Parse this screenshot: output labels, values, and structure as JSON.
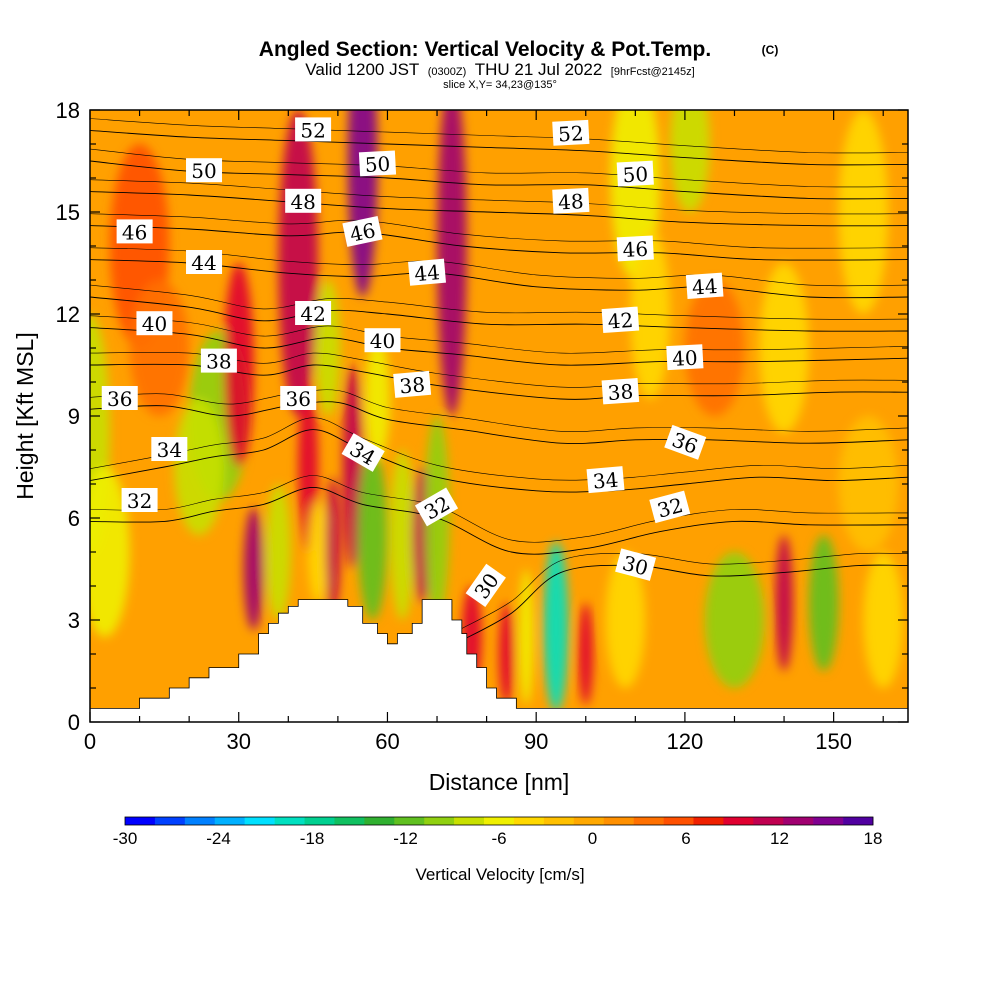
{
  "header": {
    "title": "Angled Section: Vertical Velocity & Pot.Temp.",
    "title_unit": "(C)",
    "valid_prefix": "Valid 1200 JST",
    "valid_z": "(0300Z)",
    "valid_date": "THU 21 Jul 2022",
    "valid_fcst": "[9hrFcst@2145z]",
    "slice": "slice X,Y= 34,23@135°"
  },
  "chart_data": {
    "type": "heatmap",
    "xlabel": "Distance [nm]",
    "ylabel": "Height [Kft MSL]",
    "xlim": [
      0,
      165
    ],
    "ylim": [
      0,
      18
    ],
    "x_ticks": [
      "0",
      "30",
      "60",
      "90",
      "120",
      "150"
    ],
    "y_ticks": [
      "0",
      "3",
      "6",
      "9",
      "12",
      "15",
      "18"
    ],
    "terrain": {
      "distance": [
        0,
        10,
        16,
        20,
        24,
        30,
        34,
        36,
        38,
        40,
        42,
        44,
        46,
        48,
        50,
        52,
        55,
        58,
        60,
        62,
        65,
        67,
        68,
        70,
        73,
        75,
        76,
        78,
        80,
        82,
        86,
        88,
        90,
        165
      ],
      "height": [
        0.4,
        0.7,
        1.0,
        1.3,
        1.6,
        2.0,
        2.6,
        2.9,
        3.2,
        3.4,
        3.6,
        3.6,
        3.6,
        3.6,
        3.6,
        3.4,
        2.9,
        2.6,
        2.3,
        2.6,
        2.9,
        3.6,
        3.6,
        3.6,
        3.0,
        2.6,
        2.0,
        1.6,
        1.0,
        0.7,
        0.4,
        0.4,
        0.4,
        0.4
      ]
    },
    "colorbar": {
      "label": "Vertical Velocity [cm/s]",
      "ticks": [
        "-30",
        "-24",
        "-18",
        "-12",
        "-6",
        "0",
        "6",
        "12",
        "18"
      ],
      "range": [
        -30,
        18
      ],
      "colors": [
        "#0000ff",
        "#0040ff",
        "#0080ff",
        "#00b0ff",
        "#00e0ff",
        "#00e0c0",
        "#00d090",
        "#10c060",
        "#30b030",
        "#60c020",
        "#90d010",
        "#c8e000",
        "#f0f000",
        "#ffd800",
        "#ffc000",
        "#ffa800",
        "#ff9000",
        "#ff7000",
        "#ff5000",
        "#f02000",
        "#e00030",
        "#c00050",
        "#a00070",
        "#800090",
        "#5000a0"
      ]
    },
    "cells": [
      {
        "x": 0,
        "y": 8.5,
        "rx": 4,
        "ry": 3.5,
        "w": -7
      },
      {
        "x": 3,
        "y": 5.0,
        "rx": 5,
        "ry": 2.5,
        "w": -6
      },
      {
        "x": 10,
        "y": 14,
        "rx": 6,
        "ry": 3.0,
        "w": 6
      },
      {
        "x": 14,
        "y": 11,
        "rx": 6,
        "ry": 2.0,
        "w": 4
      },
      {
        "x": 26,
        "y": 9.0,
        "rx": 6,
        "ry": 2.5,
        "w": -10
      },
      {
        "x": 22,
        "y": 7.5,
        "rx": 5,
        "ry": 2.0,
        "w": -8
      },
      {
        "x": 30,
        "y": 10.5,
        "rx": 3,
        "ry": 3.0,
        "w": 10
      },
      {
        "x": 33,
        "y": 4.5,
        "rx": 2,
        "ry": 1.8,
        "w": 13
      },
      {
        "x": 38,
        "y": 5.0,
        "rx": 2.5,
        "ry": 2.0,
        "w": -7
      },
      {
        "x": 42,
        "y": 13.5,
        "rx": 4,
        "ry": 4.5,
        "w": 12
      },
      {
        "x": 44,
        "y": 7.5,
        "rx": 2,
        "ry": 2.5,
        "w": 9
      },
      {
        "x": 46,
        "y": 5.0,
        "rx": 2,
        "ry": 1.5,
        "w": -5
      },
      {
        "x": 49,
        "y": 5.2,
        "rx": 1.5,
        "ry": 2.0,
        "w": 11
      },
      {
        "x": 48,
        "y": 11.0,
        "rx": 2.5,
        "ry": 2.0,
        "w": -8
      },
      {
        "x": 55,
        "y": 16.5,
        "rx": 3,
        "ry": 4.0,
        "w": 16
      },
      {
        "x": 53,
        "y": 7.5,
        "rx": 2,
        "ry": 3.0,
        "w": 11
      },
      {
        "x": 57,
        "y": 5.5,
        "rx": 3,
        "ry": 2.5,
        "w": -12
      },
      {
        "x": 58,
        "y": 9.5,
        "rx": 2.5,
        "ry": 1.8,
        "w": -6
      },
      {
        "x": 63,
        "y": 5.5,
        "rx": 2.5,
        "ry": 2.5,
        "w": -8
      },
      {
        "x": 67,
        "y": 5.5,
        "rx": 2,
        "ry": 2.0,
        "w": 12
      },
      {
        "x": 70,
        "y": 6.0,
        "rx": 2.5,
        "ry": 3.0,
        "w": -9
      },
      {
        "x": 73,
        "y": 14.0,
        "rx": 3,
        "ry": 5.0,
        "w": 13
      },
      {
        "x": 77,
        "y": 2.5,
        "rx": 2,
        "ry": 1.5,
        "w": 9
      },
      {
        "x": 84,
        "y": 2.0,
        "rx": 1.5,
        "ry": 1.5,
        "w": 10
      },
      {
        "x": 88,
        "y": 2.5,
        "rx": 1.5,
        "ry": 2.0,
        "w": -6
      },
      {
        "x": 94,
        "y": 2.8,
        "rx": 2.5,
        "ry": 2.5,
        "w": -19
      },
      {
        "x": 100,
        "y": 2.0,
        "rx": 1.5,
        "ry": 1.5,
        "w": 10
      },
      {
        "x": 108,
        "y": 3.0,
        "rx": 4,
        "ry": 2.0,
        "w": -5
      },
      {
        "x": 110,
        "y": 16.0,
        "rx": 5,
        "ry": 3.0,
        "w": -6
      },
      {
        "x": 113,
        "y": 12.0,
        "rx": 4,
        "ry": 2.5,
        "w": -4
      },
      {
        "x": 121,
        "y": 17.0,
        "rx": 4,
        "ry": 2.0,
        "w": -7
      },
      {
        "x": 130,
        "y": 3.0,
        "rx": 6,
        "ry": 2.0,
        "w": -9
      },
      {
        "x": 126,
        "y": 11.0,
        "rx": 6,
        "ry": 2.0,
        "w": 4
      },
      {
        "x": 140,
        "y": 3.5,
        "rx": 1.8,
        "ry": 2.0,
        "w": 12
      },
      {
        "x": 140,
        "y": 11.0,
        "rx": 5,
        "ry": 2.5,
        "w": -5
      },
      {
        "x": 148,
        "y": 3.5,
        "rx": 3,
        "ry": 2.0,
        "w": -12
      },
      {
        "x": 156,
        "y": 15.0,
        "rx": 5,
        "ry": 3.0,
        "w": -4
      },
      {
        "x": 157,
        "y": 7.0,
        "rx": 6,
        "ry": 2.0,
        "w": -3
      },
      {
        "x": 160,
        "y": 3.0,
        "rx": 4,
        "ry": 2.0,
        "w": -4
      }
    ],
    "theta_contours": [
      {
        "value": 30,
        "pts": [
          [
            75,
            2.4
          ],
          [
            85,
            3.2
          ],
          [
            95,
            4.4
          ],
          [
            110,
            4.6
          ],
          [
            125,
            4.3
          ],
          [
            140,
            4.4
          ],
          [
            155,
            4.6
          ],
          [
            165,
            4.6
          ]
        ]
      },
      {
        "value": 32,
        "pts": [
          [
            0,
            5.9
          ],
          [
            15,
            5.9
          ],
          [
            25,
            6.2
          ],
          [
            35,
            6.4
          ],
          [
            45,
            6.9
          ],
          [
            55,
            6.4
          ],
          [
            70,
            6.0
          ],
          [
            85,
            5.0
          ],
          [
            100,
            5.1
          ],
          [
            115,
            5.6
          ],
          [
            130,
            5.9
          ],
          [
            145,
            5.8
          ],
          [
            165,
            5.8
          ]
        ]
      },
      {
        "value": 34,
        "pts": [
          [
            0,
            7.1
          ],
          [
            15,
            7.5
          ],
          [
            25,
            7.8
          ],
          [
            35,
            8.0
          ],
          [
            45,
            8.6
          ],
          [
            55,
            8.0
          ],
          [
            70,
            7.2
          ],
          [
            90,
            6.8
          ],
          [
            105,
            6.8
          ],
          [
            120,
            7.0
          ],
          [
            135,
            7.2
          ],
          [
            150,
            7.1
          ],
          [
            165,
            7.2
          ]
        ]
      },
      {
        "value": 36,
        "pts": [
          [
            0,
            9.2
          ],
          [
            15,
            9.3
          ],
          [
            28,
            9.0
          ],
          [
            40,
            9.3
          ],
          [
            50,
            9.4
          ],
          [
            60,
            8.9
          ],
          [
            75,
            8.6
          ],
          [
            95,
            8.2
          ],
          [
            110,
            8.3
          ],
          [
            125,
            8.3
          ],
          [
            145,
            8.2
          ],
          [
            165,
            8.3
          ]
        ]
      },
      {
        "value": 38,
        "pts": [
          [
            0,
            10.5
          ],
          [
            20,
            10.5
          ],
          [
            35,
            10.2
          ],
          [
            45,
            10.5
          ],
          [
            55,
            10.3
          ],
          [
            70,
            9.9
          ],
          [
            95,
            9.5
          ],
          [
            110,
            9.6
          ],
          [
            130,
            9.6
          ],
          [
            150,
            9.7
          ],
          [
            165,
            9.7
          ]
        ]
      },
      {
        "value": 40,
        "pts": [
          [
            0,
            11.6
          ],
          [
            20,
            11.4
          ],
          [
            35,
            11.0
          ],
          [
            48,
            11.3
          ],
          [
            60,
            11.0
          ],
          [
            75,
            10.8
          ],
          [
            95,
            10.5
          ],
          [
            115,
            10.6
          ],
          [
            135,
            10.6
          ],
          [
            165,
            10.7
          ]
        ]
      },
      {
        "value": 42,
        "pts": [
          [
            0,
            12.5
          ],
          [
            20,
            12.2
          ],
          [
            35,
            11.8
          ],
          [
            48,
            12.1
          ],
          [
            60,
            12.0
          ],
          [
            80,
            11.7
          ],
          [
            100,
            11.7
          ],
          [
            120,
            11.6
          ],
          [
            145,
            11.5
          ],
          [
            165,
            11.5
          ]
        ]
      },
      {
        "value": 44,
        "pts": [
          [
            0,
            13.6
          ],
          [
            20,
            13.5
          ],
          [
            40,
            13.2
          ],
          [
            55,
            13.1
          ],
          [
            70,
            13.2
          ],
          [
            90,
            12.8
          ],
          [
            110,
            12.7
          ],
          [
            125,
            12.8
          ],
          [
            145,
            12.5
          ],
          [
            165,
            12.5
          ]
        ]
      },
      {
        "value": 46,
        "pts": [
          [
            0,
            14.6
          ],
          [
            20,
            14.5
          ],
          [
            40,
            14.3
          ],
          [
            55,
            14.4
          ],
          [
            75,
            14.0
          ],
          [
            95,
            13.8
          ],
          [
            115,
            13.8
          ],
          [
            135,
            13.6
          ],
          [
            165,
            13.6
          ]
        ]
      },
      {
        "value": 48,
        "pts": [
          [
            0,
            15.6
          ],
          [
            20,
            15.5
          ],
          [
            40,
            15.3
          ],
          [
            60,
            15.1
          ],
          [
            80,
            15.0
          ],
          [
            100,
            14.9
          ],
          [
            120,
            14.7
          ],
          [
            145,
            14.6
          ],
          [
            165,
            14.6
          ]
        ]
      },
      {
        "value": 50,
        "pts": [
          [
            0,
            16.5
          ],
          [
            20,
            16.2
          ],
          [
            40,
            16.1
          ],
          [
            60,
            16.0
          ],
          [
            80,
            15.8
          ],
          [
            100,
            15.8
          ],
          [
            120,
            15.6
          ],
          [
            145,
            15.4
          ],
          [
            165,
            15.4
          ]
        ]
      },
      {
        "value": 52,
        "pts": [
          [
            0,
            17.4
          ],
          [
            20,
            17.2
          ],
          [
            40,
            17.1
          ],
          [
            60,
            17.0
          ],
          [
            80,
            16.9
          ],
          [
            100,
            16.8
          ],
          [
            120,
            16.6
          ],
          [
            145,
            16.4
          ],
          [
            165,
            16.4
          ]
        ]
      }
    ],
    "theta_labels": [
      {
        "text": "52",
        "x": 45,
        "y": 17.4,
        "rot": 0
      },
      {
        "text": "52",
        "x": 97,
        "y": 17.3,
        "rot": -3
      },
      {
        "text": "50",
        "x": 23,
        "y": 16.2,
        "rot": 0
      },
      {
        "text": "50",
        "x": 58,
        "y": 16.4,
        "rot": -3
      },
      {
        "text": "50",
        "x": 110,
        "y": 16.1,
        "rot": -3
      },
      {
        "text": "48",
        "x": 43,
        "y": 15.3,
        "rot": 0
      },
      {
        "text": "48",
        "x": 97,
        "y": 15.3,
        "rot": -3
      },
      {
        "text": "46",
        "x": 9,
        "y": 14.4,
        "rot": 0
      },
      {
        "text": "46",
        "x": 55,
        "y": 14.4,
        "rot": -12
      },
      {
        "text": "46",
        "x": 110,
        "y": 13.9,
        "rot": -3
      },
      {
        "text": "44",
        "x": 23,
        "y": 13.5,
        "rot": 0
      },
      {
        "text": "44",
        "x": 68,
        "y": 13.2,
        "rot": -5
      },
      {
        "text": "44",
        "x": 124,
        "y": 12.8,
        "rot": -4
      },
      {
        "text": "42",
        "x": 45,
        "y": 12.0,
        "rot": 0
      },
      {
        "text": "42",
        "x": 107,
        "y": 11.8,
        "rot": -4
      },
      {
        "text": "40",
        "x": 13,
        "y": 11.7,
        "rot": 0
      },
      {
        "text": "40",
        "x": 59,
        "y": 11.2,
        "rot": 0
      },
      {
        "text": "40",
        "x": 120,
        "y": 10.7,
        "rot": -3
      },
      {
        "text": "38",
        "x": 26,
        "y": 10.6,
        "rot": 0
      },
      {
        "text": "38",
        "x": 65,
        "y": 9.9,
        "rot": -5
      },
      {
        "text": "38",
        "x": 107,
        "y": 9.7,
        "rot": -4
      },
      {
        "text": "36",
        "x": 6,
        "y": 9.5,
        "rot": 0
      },
      {
        "text": "36",
        "x": 42,
        "y": 9.5,
        "rot": 0
      },
      {
        "text": "36",
        "x": 120,
        "y": 8.2,
        "rot": 20
      },
      {
        "text": "34",
        "x": 16,
        "y": 8.0,
        "rot": 0
      },
      {
        "text": "34",
        "x": 55,
        "y": 7.9,
        "rot": 30
      },
      {
        "text": "34",
        "x": 104,
        "y": 7.1,
        "rot": -5
      },
      {
        "text": "32",
        "x": 10,
        "y": 6.5,
        "rot": 0
      },
      {
        "text": "32",
        "x": 70,
        "y": 6.3,
        "rot": -30
      },
      {
        "text": "32",
        "x": 117,
        "y": 6.3,
        "rot": -15
      },
      {
        "text": "30",
        "x": 80,
        "y": 4.0,
        "rot": -55
      },
      {
        "text": "30",
        "x": 110,
        "y": 4.6,
        "rot": 15
      }
    ]
  }
}
